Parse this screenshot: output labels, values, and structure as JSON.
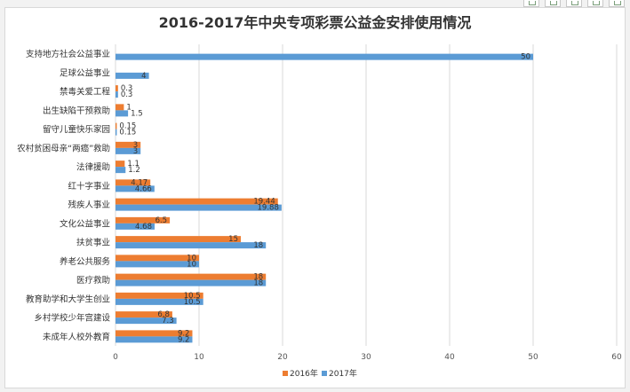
{
  "chart_data": {
    "type": "bar",
    "orientation": "horizontal",
    "title": "2016-2017年中央专项彩票公益金安排使用情况",
    "categories": [
      "支持地方社会公益事业",
      "足球公益事业",
      "禁毒关爱工程",
      "出生缺陷干预救助",
      "留守儿童快乐家园",
      "农村贫困母亲“两癌”救助",
      "法律援助",
      "红十字事业",
      "残疾人事业",
      "文化公益事业",
      "扶贫事业",
      "养老公共服务",
      "医疗救助",
      "教育助学和大学生创业",
      "乡村学校少年宫建设",
      "未成年人校外教育"
    ],
    "series": [
      {
        "name": "2016年",
        "color": "#ed7d31",
        "values": [
          null,
          null,
          0.3,
          1,
          0.15,
          3,
          1.1,
          4.17,
          19.44,
          6.5,
          15,
          10,
          18,
          10.5,
          6.8,
          9.2
        ],
        "labels": [
          "",
          "",
          "0.3",
          "1",
          "0.15",
          "3",
          "1.1",
          "4.17",
          "19.44",
          "6.5",
          "15",
          "10",
          "18",
          "10.5",
          "6.8",
          "9.2"
        ]
      },
      {
        "name": "2017年",
        "color": "#5b9bd5",
        "values": [
          50,
          4,
          0.3,
          1.5,
          0.15,
          3,
          1.2,
          4.66,
          19.88,
          4.68,
          18,
          10,
          18,
          10.5,
          7.3,
          9.2
        ],
        "labels": [
          "50",
          "4",
          "0.3",
          "1.5",
          "0.15",
          "3",
          "1.2",
          "4.66",
          "19.88",
          "4.68",
          "18",
          "10",
          "18",
          "10.5",
          "7.3",
          "9.2"
        ]
      }
    ],
    "xlim": [
      0,
      60
    ],
    "xticks": [
      "0",
      "10",
      "20",
      "30",
      "40",
      "50",
      "60"
    ],
    "grid": true,
    "legend": "bottom"
  }
}
